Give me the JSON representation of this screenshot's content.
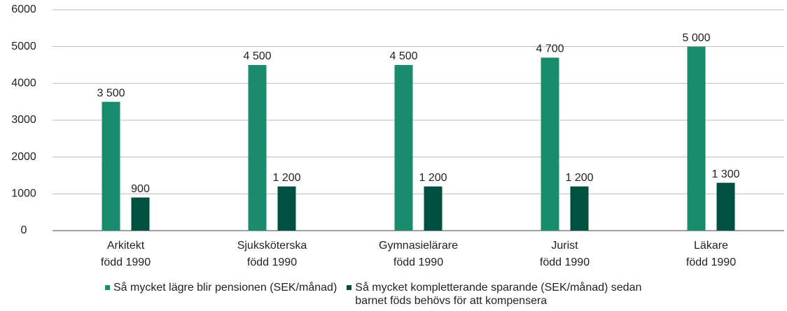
{
  "chart_data": {
    "type": "bar",
    "categories": [
      [
        "Arkitekt",
        "född 1990"
      ],
      [
        "Sjuksköterska",
        "född 1990"
      ],
      [
        "Gymnasielärare",
        "född 1990"
      ],
      [
        "Jurist",
        "född 1990"
      ],
      [
        "Läkare",
        "född 1990"
      ]
    ],
    "series": [
      {
        "name": "Så mycket lägre blir pensionen (SEK/månad)",
        "color": "#1a8c6e",
        "values": [
          3500,
          4500,
          4500,
          4700,
          5000
        ],
        "value_labels": [
          "3 500",
          "4 500",
          "4 500",
          "4 700",
          "5 000"
        ]
      },
      {
        "name": "Så mycket kompletterande sparande (SEK/månad) sedan barnet föds behövs för att kompensera",
        "color": "#00503f",
        "values": [
          900,
          1200,
          1200,
          1200,
          1300
        ],
        "value_labels": [
          "900",
          "1 200",
          "1 200",
          "1 200",
          "1 300"
        ]
      }
    ],
    "ylim": [
      0,
      6000
    ],
    "yticks": [
      0,
      1000,
      2000,
      3000,
      4000,
      5000,
      6000
    ],
    "grid": true
  }
}
